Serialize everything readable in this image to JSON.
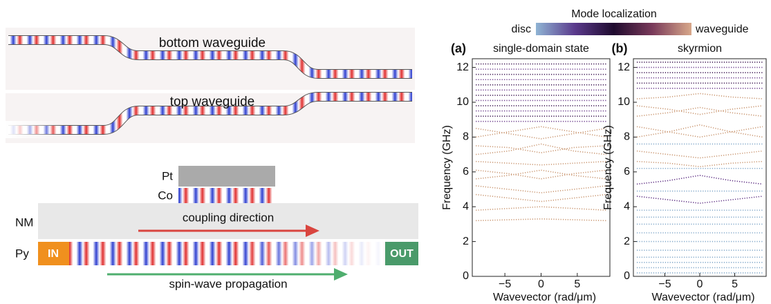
{
  "left": {
    "bottom_label": "bottom waveguide",
    "top_label": "top waveguide",
    "pt": "Pt",
    "co": "Co",
    "nm": "NM",
    "py": "Py",
    "in": "IN",
    "out": "OUT",
    "coupling": "coupling direction",
    "propagation": "spin-wave propagation"
  },
  "colorbar": {
    "title": "Mode localization",
    "low": "disc",
    "high": "waveguide",
    "stops": [
      "#8fb4d4",
      "#5a3a8c",
      "#1f0a2e",
      "#7a3a5a",
      "#d8a88a"
    ]
  },
  "chart_data": [
    {
      "type": "line",
      "panel_label": "(a)",
      "title": "single-domain state",
      "xlabel": "Wavevector (rad/μm)",
      "ylabel": "Frequency (GHz)",
      "x": [
        -9,
        -4.5,
        0,
        4.5,
        9
      ],
      "xlim": [
        -9.5,
        9.5
      ],
      "ylim": [
        0,
        12.5
      ],
      "xticks": [
        {
          "value": -5,
          "label": "−5"
        },
        0,
        5
      ],
      "yticks": [
        0,
        2,
        4,
        6,
        8,
        10,
        12
      ],
      "series": [
        {
          "color": "#c9956f",
          "values": [
            3.2,
            3.25,
            3.3,
            3.25,
            3.2
          ]
        },
        {
          "color": "#c9956f",
          "values": [
            3.8,
            3.9,
            4.0,
            3.9,
            3.8
          ]
        },
        {
          "color": "#c9956f",
          "values": [
            4.7,
            4.5,
            4.3,
            4.5,
            4.7
          ]
        },
        {
          "color": "#c9956f",
          "values": [
            5.2,
            5.0,
            4.8,
            5.0,
            5.2
          ]
        },
        {
          "color": "#c9956f",
          "values": [
            5.6,
            5.8,
            6.1,
            5.8,
            5.6
          ]
        },
        {
          "color": "#c9956f",
          "values": [
            6.1,
            5.9,
            5.6,
            5.9,
            6.1
          ]
        },
        {
          "color": "#c9956f",
          "values": [
            6.6,
            6.5,
            6.4,
            6.5,
            6.6
          ]
        },
        {
          "color": "#c9956f",
          "values": [
            7.0,
            7.2,
            7.6,
            7.2,
            7.0
          ]
        },
        {
          "color": "#c9956f",
          "values": [
            7.5,
            7.4,
            7.1,
            7.4,
            7.5
          ]
        },
        {
          "color": "#c9956f",
          "values": [
            8.0,
            8.3,
            8.6,
            8.3,
            8.0
          ]
        },
        {
          "color": "#c9956f",
          "values": [
            8.5,
            8.2,
            7.9,
            8.2,
            8.5
          ]
        },
        {
          "color": "#6a3a8a",
          "values": [
            8.9,
            8.9,
            8.9,
            8.9,
            8.9
          ]
        },
        {
          "color": "#3b1450",
          "values": [
            9.2,
            9.2,
            9.2,
            9.2,
            9.2
          ]
        },
        {
          "color": "#6a3a8a",
          "values": [
            9.5,
            9.5,
            9.5,
            9.5,
            9.5
          ]
        },
        {
          "color": "#3b1450",
          "values": [
            9.8,
            9.8,
            9.8,
            9.8,
            9.8
          ]
        },
        {
          "color": "#6a3a8a",
          "values": [
            10.1,
            10.1,
            10.1,
            10.1,
            10.1
          ]
        },
        {
          "color": "#3b1450",
          "values": [
            10.4,
            10.4,
            10.4,
            10.4,
            10.4
          ]
        },
        {
          "color": "#6a3a8a",
          "values": [
            10.7,
            10.7,
            10.7,
            10.7,
            10.7
          ]
        },
        {
          "color": "#3b1450",
          "values": [
            11.0,
            11.0,
            11.0,
            11.0,
            11.0
          ]
        },
        {
          "color": "#6a3a8a",
          "values": [
            11.3,
            11.3,
            11.3,
            11.3,
            11.3
          ]
        },
        {
          "color": "#3b1450",
          "values": [
            11.6,
            11.6,
            11.6,
            11.6,
            11.6
          ]
        },
        {
          "color": "#6a3a8a",
          "values": [
            11.9,
            11.9,
            11.9,
            11.9,
            11.9
          ]
        },
        {
          "color": "#3b1450",
          "values": [
            12.2,
            12.2,
            12.2,
            12.2,
            12.2
          ]
        }
      ]
    },
    {
      "type": "line",
      "panel_label": "(b)",
      "title": "skyrmion",
      "xlabel": "Wavevector (rad/μm)",
      "ylabel": "Frequency (GHz)",
      "x": [
        -9,
        -4.5,
        0,
        4.5,
        9
      ],
      "xlim": [
        -9.5,
        9.5
      ],
      "ylim": [
        0,
        12.5
      ],
      "xticks": [
        {
          "value": -5,
          "label": "−5"
        },
        0,
        5
      ],
      "yticks": [
        0,
        2,
        4,
        6,
        8,
        10,
        12
      ],
      "series": [
        {
          "color": "#7fa6c8",
          "values": [
            0.2,
            0.2,
            0.2,
            0.2,
            0.2
          ]
        },
        {
          "color": "#7fa6c8",
          "values": [
            0.5,
            0.5,
            0.5,
            0.5,
            0.5
          ]
        },
        {
          "color": "#7fa6c8",
          "values": [
            0.8,
            0.8,
            0.8,
            0.8,
            0.8
          ]
        },
        {
          "color": "#7fa6c8",
          "values": [
            1.1,
            1.1,
            1.1,
            1.1,
            1.1
          ]
        },
        {
          "color": "#7fa6c8",
          "values": [
            1.5,
            1.5,
            1.5,
            1.5,
            1.5
          ]
        },
        {
          "color": "#7fa6c8",
          "values": [
            2.0,
            2.0,
            2.0,
            2.0,
            2.0
          ]
        },
        {
          "color": "#7fa6c8",
          "values": [
            2.5,
            2.5,
            2.5,
            2.5,
            2.5
          ]
        },
        {
          "color": "#7fa6c8",
          "values": [
            3.0,
            3.0,
            3.0,
            3.0,
            3.0
          ]
        },
        {
          "color": "#7fa6c8",
          "values": [
            3.4,
            3.4,
            3.4,
            3.4,
            3.4
          ]
        },
        {
          "color": "#7fa6c8",
          "values": [
            3.8,
            3.8,
            3.8,
            3.8,
            3.8
          ]
        },
        {
          "color": "#5a2a80",
          "values": [
            4.6,
            4.4,
            4.2,
            4.4,
            4.6
          ]
        },
        {
          "color": "#7fa6c8",
          "values": [
            4.9,
            4.9,
            4.9,
            4.9,
            4.9
          ]
        },
        {
          "color": "#5a2a80",
          "values": [
            5.3,
            5.5,
            5.8,
            5.5,
            5.3
          ]
        },
        {
          "color": "#7fa6c8",
          "values": [
            6.2,
            6.2,
            6.2,
            6.2,
            6.2
          ]
        },
        {
          "color": "#c9956f",
          "values": [
            6.6,
            6.5,
            6.3,
            6.5,
            6.6
          ]
        },
        {
          "color": "#c9956f",
          "values": [
            7.2,
            7.0,
            6.8,
            7.0,
            7.2
          ]
        },
        {
          "color": "#7fa6c8",
          "values": [
            7.6,
            7.6,
            7.6,
            7.6,
            7.6
          ]
        },
        {
          "color": "#c9956f",
          "values": [
            8.0,
            8.3,
            8.7,
            8.3,
            8.0
          ]
        },
        {
          "color": "#c9956f",
          "values": [
            8.6,
            8.3,
            8.0,
            8.3,
            8.6
          ]
        },
        {
          "color": "#c9956f",
          "values": [
            9.2,
            9.4,
            9.7,
            9.4,
            9.2
          ]
        },
        {
          "color": "#c9956f",
          "values": [
            9.8,
            9.6,
            9.3,
            9.6,
            9.8
          ]
        },
        {
          "color": "#c9956f",
          "values": [
            10.2,
            10.3,
            10.5,
            10.3,
            10.2
          ]
        },
        {
          "color": "#6a3a8a",
          "values": [
            10.8,
            10.8,
            10.8,
            10.8,
            10.8
          ]
        },
        {
          "color": "#3b1450",
          "values": [
            11.1,
            11.1,
            11.1,
            11.1,
            11.1
          ]
        },
        {
          "color": "#6a3a8a",
          "values": [
            11.4,
            11.4,
            11.4,
            11.4,
            11.4
          ]
        },
        {
          "color": "#3b1450",
          "values": [
            11.7,
            11.7,
            11.7,
            11.7,
            11.7
          ]
        },
        {
          "color": "#6a3a8a",
          "values": [
            12.0,
            12.0,
            12.0,
            12.0,
            12.0
          ]
        },
        {
          "color": "#3b1450",
          "values": [
            12.3,
            12.3,
            12.3,
            12.3,
            12.3
          ]
        }
      ]
    }
  ]
}
